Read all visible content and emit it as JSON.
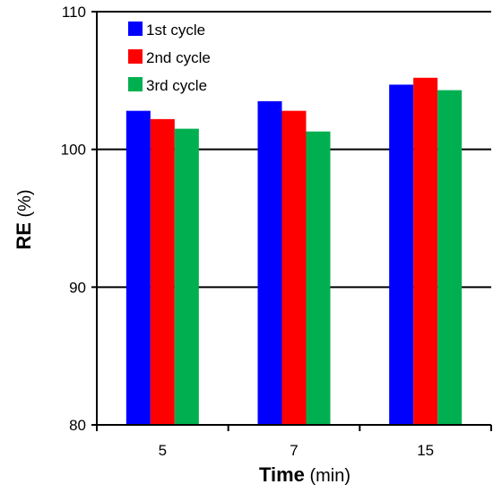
{
  "chart_data": {
    "type": "bar",
    "categories": [
      "5",
      "7",
      "15"
    ],
    "series": [
      {
        "name": "1st cycle",
        "values": [
          102.8,
          103.5,
          104.7
        ],
        "color": "#0000FF"
      },
      {
        "name": "2nd cycle",
        "values": [
          102.2,
          102.8,
          105.2
        ],
        "color": "#FF0000"
      },
      {
        "name": "3rd cycle",
        "values": [
          101.5,
          101.3,
          104.3
        ],
        "color": "#00B050"
      }
    ],
    "xlabel": {
      "bold": "Time",
      "normal": " (min)"
    },
    "ylabel": {
      "bold": "RE",
      "normal": " (%)"
    },
    "ylim": [
      80,
      110
    ],
    "yticks": [
      "80",
      "90",
      "100",
      "110"
    ],
    "grid": true,
    "legend_position": "top-left"
  }
}
